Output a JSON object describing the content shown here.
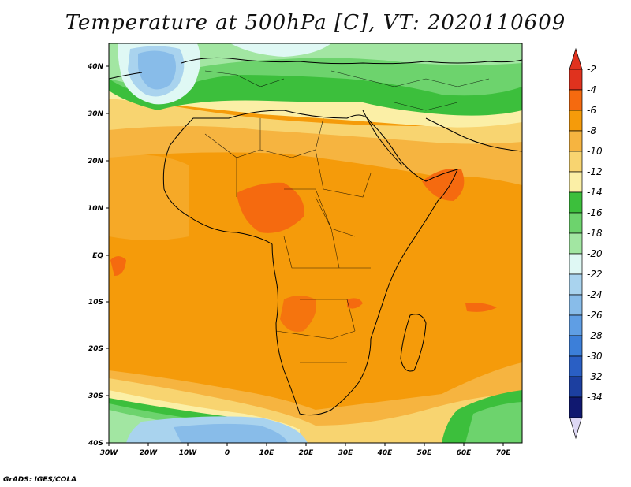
{
  "title": "Temperature at 500hPa [C], VT: 2020110609",
  "credit": "GrADS: IGES/COLA",
  "map": {
    "lat_labels": [
      "40N",
      "30N",
      "20N",
      "10N",
      "EQ",
      "10S",
      "20S",
      "30S",
      "40S"
    ],
    "lon_labels": [
      "30W",
      "20W",
      "10W",
      "0",
      "10E",
      "20E",
      "30E",
      "40E",
      "50E",
      "60E",
      "70E"
    ]
  },
  "colorbar": {
    "levels": [
      "-2",
      "-4",
      "-6",
      "-8",
      "-10",
      "-12",
      "-14",
      "-16",
      "-18",
      "-20",
      "-22",
      "-24",
      "-26",
      "-28",
      "-30",
      "-32",
      "-34"
    ],
    "colors": [
      "#e0321e",
      "#f56a0f",
      "#f59b0a",
      "#f6b440",
      "#f8d470",
      "#fbefa6",
      "#3cbf3c",
      "#6dd36d",
      "#a2e6a2",
      "#dff8f4",
      "#a9d3ee",
      "#88bce9",
      "#5f9ee4",
      "#3c7fd9",
      "#2a5fc4",
      "#1c3fa0",
      "#101870"
    ],
    "top_color": "#e0321e",
    "bottom_color": "#ded8f5"
  }
}
